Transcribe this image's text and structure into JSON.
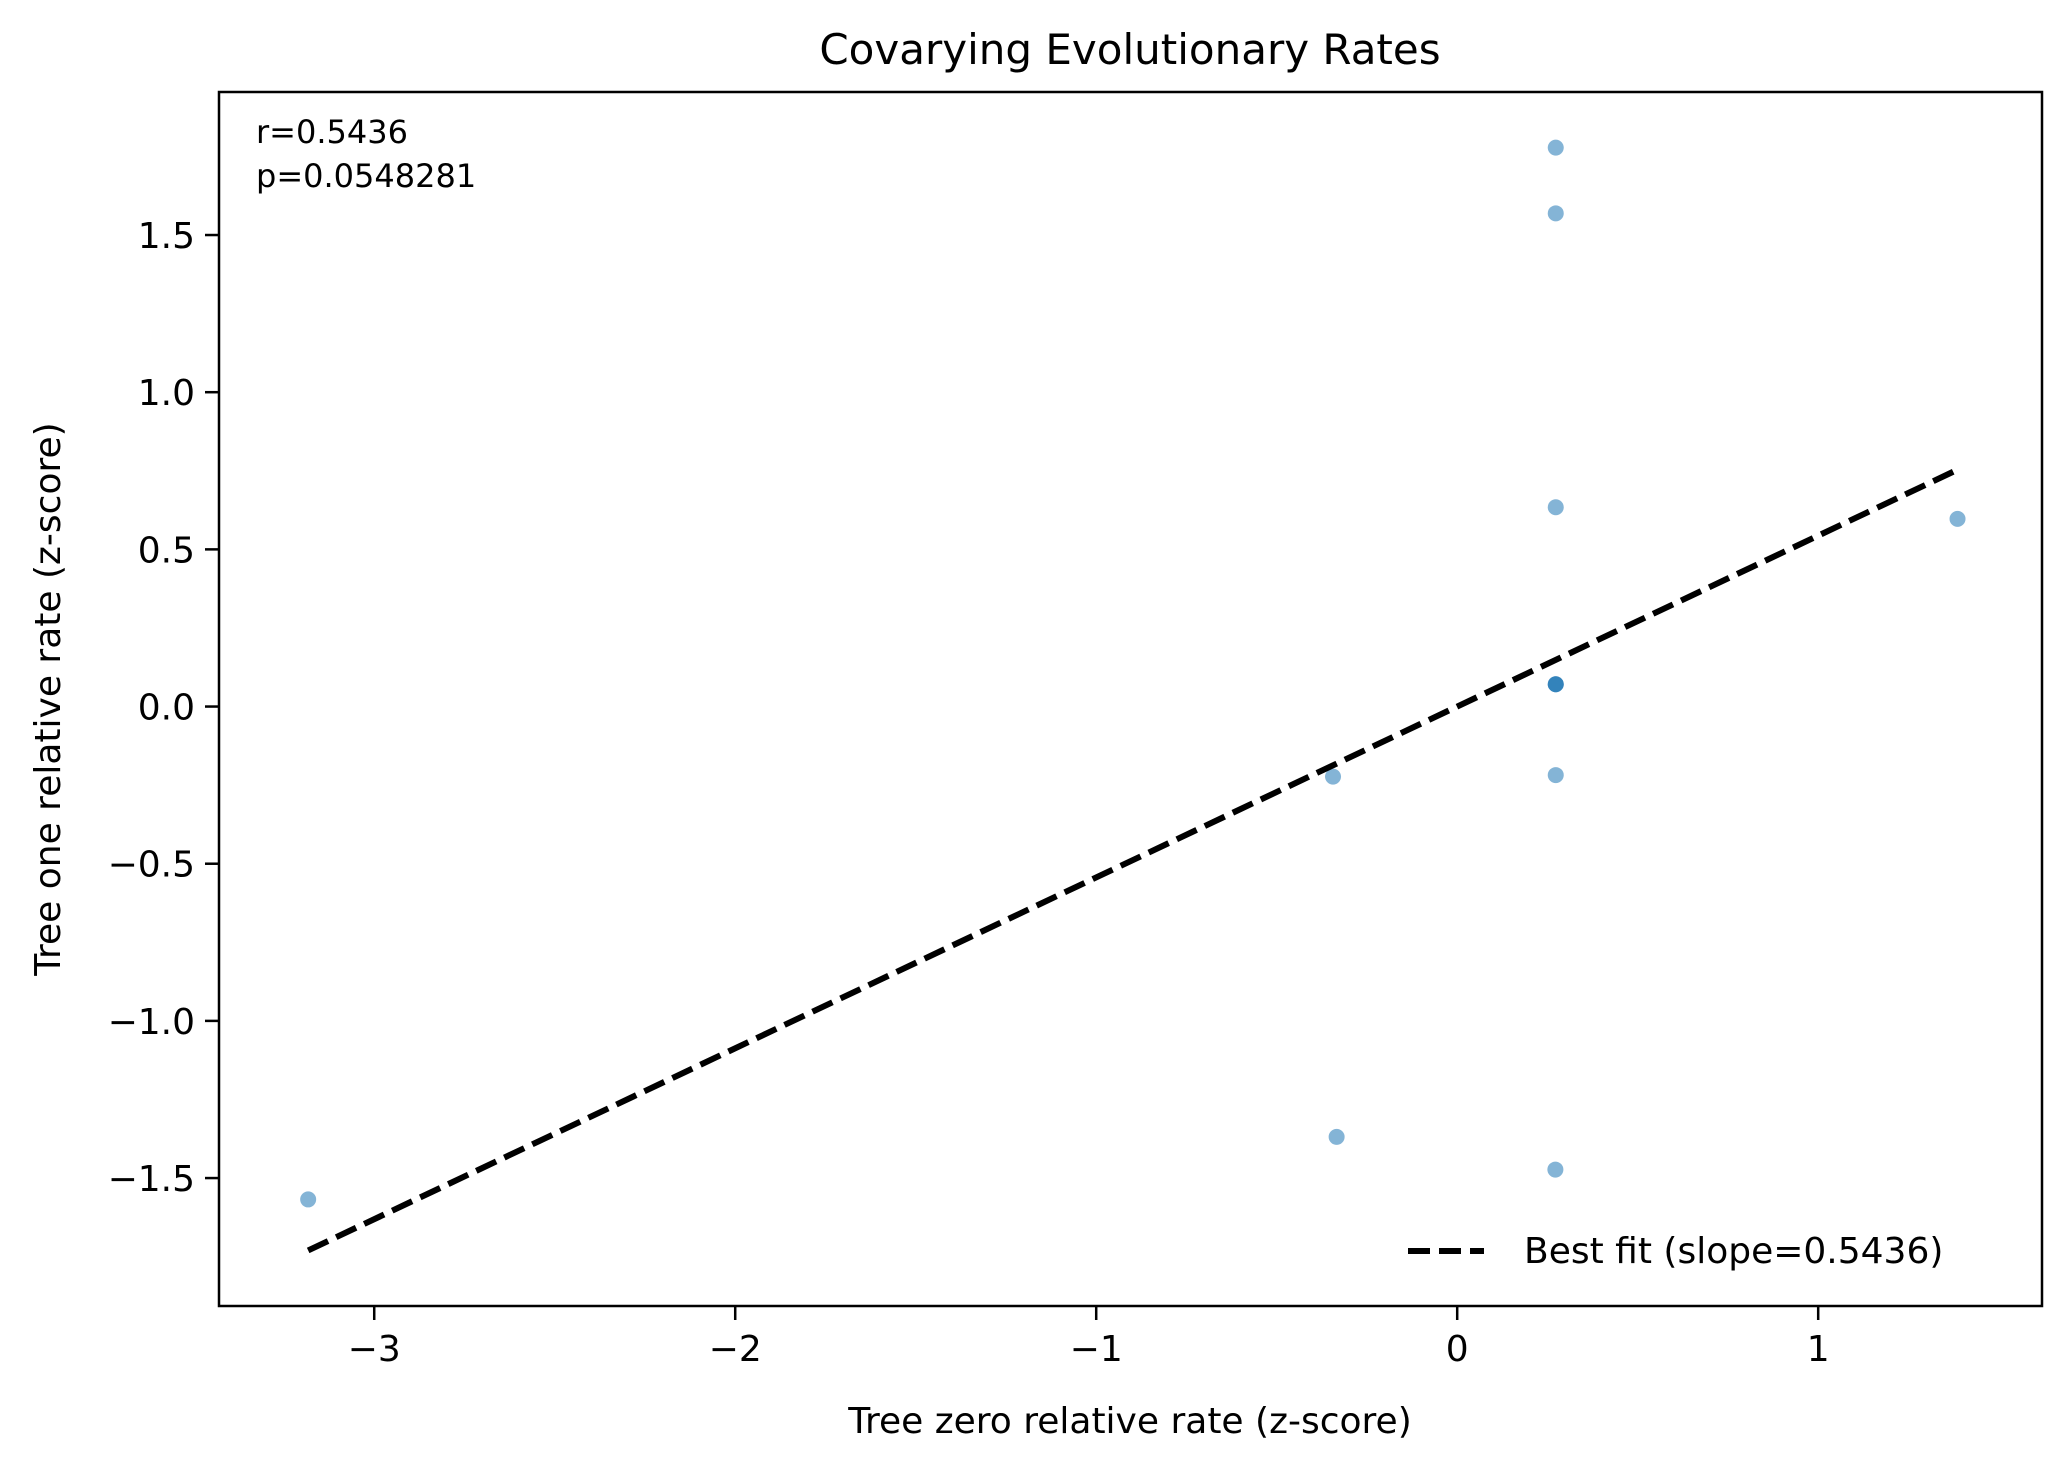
{
  "chart_data": {
    "type": "scatter",
    "title": "Covarying Evolutionary Rates",
    "xlabel": "Tree zero relative rate (z-score)",
    "ylabel": "Tree one relative rate (z-score)",
    "xlim": [
      -3.43,
      1.62
    ],
    "ylim": [
      -1.907,
      1.955
    ],
    "grid": false,
    "x_ticks": [
      -3,
      -2,
      -1,
      0,
      1
    ],
    "x_tick_labels": [
      "−3",
      "−2",
      "−1",
      "0",
      "1"
    ],
    "y_ticks": [
      -1.5,
      -1.0,
      -0.5,
      0.0,
      0.5,
      1.0,
      1.5
    ],
    "y_tick_labels": [
      "−1.5",
      "−1.0",
      "−0.5",
      "0.0",
      "0.5",
      "1.0",
      "1.5"
    ],
    "series": [
      {
        "name": "points",
        "kind": "scatter",
        "color": "#1f77b4",
        "alpha": 0.55,
        "points": [
          {
            "x": -3.183,
            "y": -1.568
          },
          {
            "x": -0.344,
            "y": -0.223
          },
          {
            "x": -0.334,
            "y": -1.369
          },
          {
            "x": 0.273,
            "y": 1.778
          },
          {
            "x": 0.273,
            "y": 1.569
          },
          {
            "x": 0.273,
            "y": 0.634
          },
          {
            "x": 0.273,
            "y": 0.071
          },
          {
            "x": 0.273,
            "y": 0.071
          },
          {
            "x": 0.273,
            "y": 0.071
          },
          {
            "x": 0.273,
            "y": -0.218
          },
          {
            "x": 0.272,
            "y": -1.473
          },
          {
            "x": 1.386,
            "y": 0.597
          }
        ]
      },
      {
        "name": "Best fit (slope=0.5436)",
        "kind": "line",
        "style": "dashed",
        "color": "#000000",
        "slope": 0.5436,
        "intercept": 0.0,
        "x_range": [
          -3.183,
          1.386
        ]
      }
    ],
    "legend": {
      "position": "lower-right",
      "entries": [
        "Best fit (slope=0.5436)"
      ]
    },
    "annotations": [
      "r=0.5436",
      "p=0.0548281"
    ]
  }
}
